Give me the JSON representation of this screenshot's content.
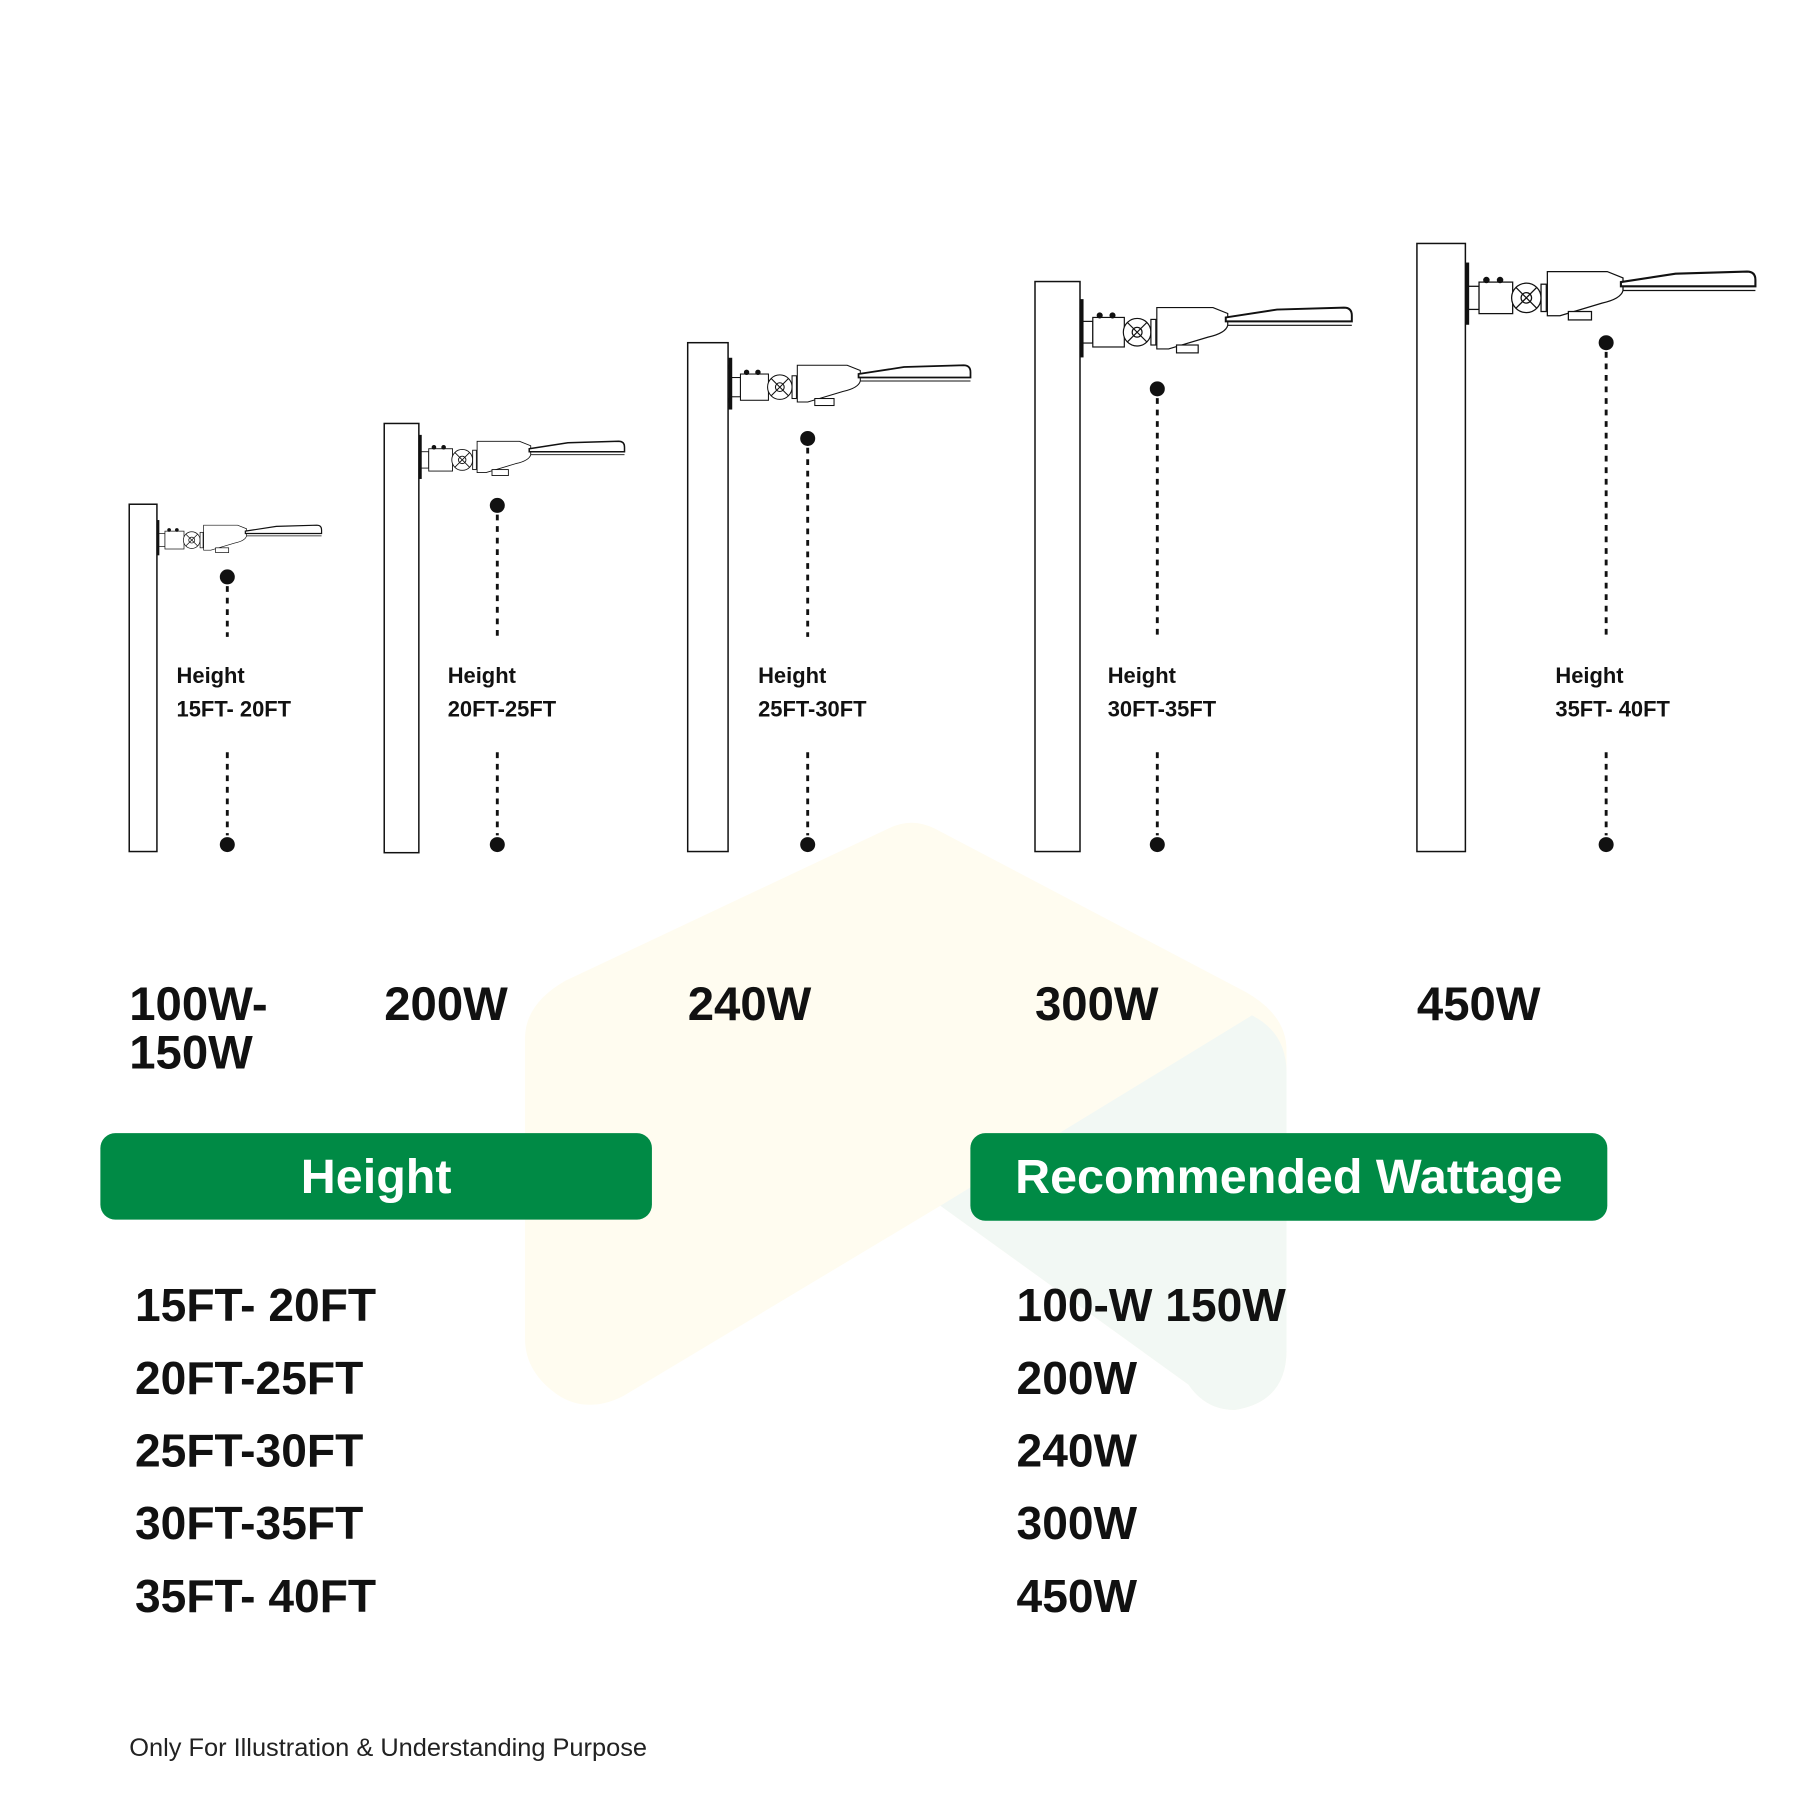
{
  "poles": [
    {
      "height_label": "Height",
      "range": "15FT- 20FT",
      "wattage": "100W- 150W"
    },
    {
      "height_label": "Height",
      "range": "20FT-25FT",
      "wattage": "200W"
    },
    {
      "height_label": "Height",
      "range": "25FT-30FT",
      "wattage": "240W"
    },
    {
      "height_label": "Height",
      "range": "30FT-35FT",
      "wattage": "300W"
    },
    {
      "height_label": "Height",
      "range": "35FT- 40FT",
      "wattage": "450W"
    }
  ],
  "table": {
    "height_header": "Height",
    "wattage_header": "Recommended Wattage",
    "heights": [
      "15FT- 20FT",
      "20FT-25FT",
      "25FT-30FT",
      "30FT-35FT",
      "35FT- 40FT"
    ],
    "wattages": [
      "100-W 150W",
      "200W",
      "240W",
      "300W",
      "450W"
    ]
  },
  "footer": "Only For Illustration & Understanding Purpose",
  "colors": {
    "accent": "#008a45",
    "watermark_yellow": "#fffcf0",
    "watermark_green": "#f2f8f4"
  }
}
